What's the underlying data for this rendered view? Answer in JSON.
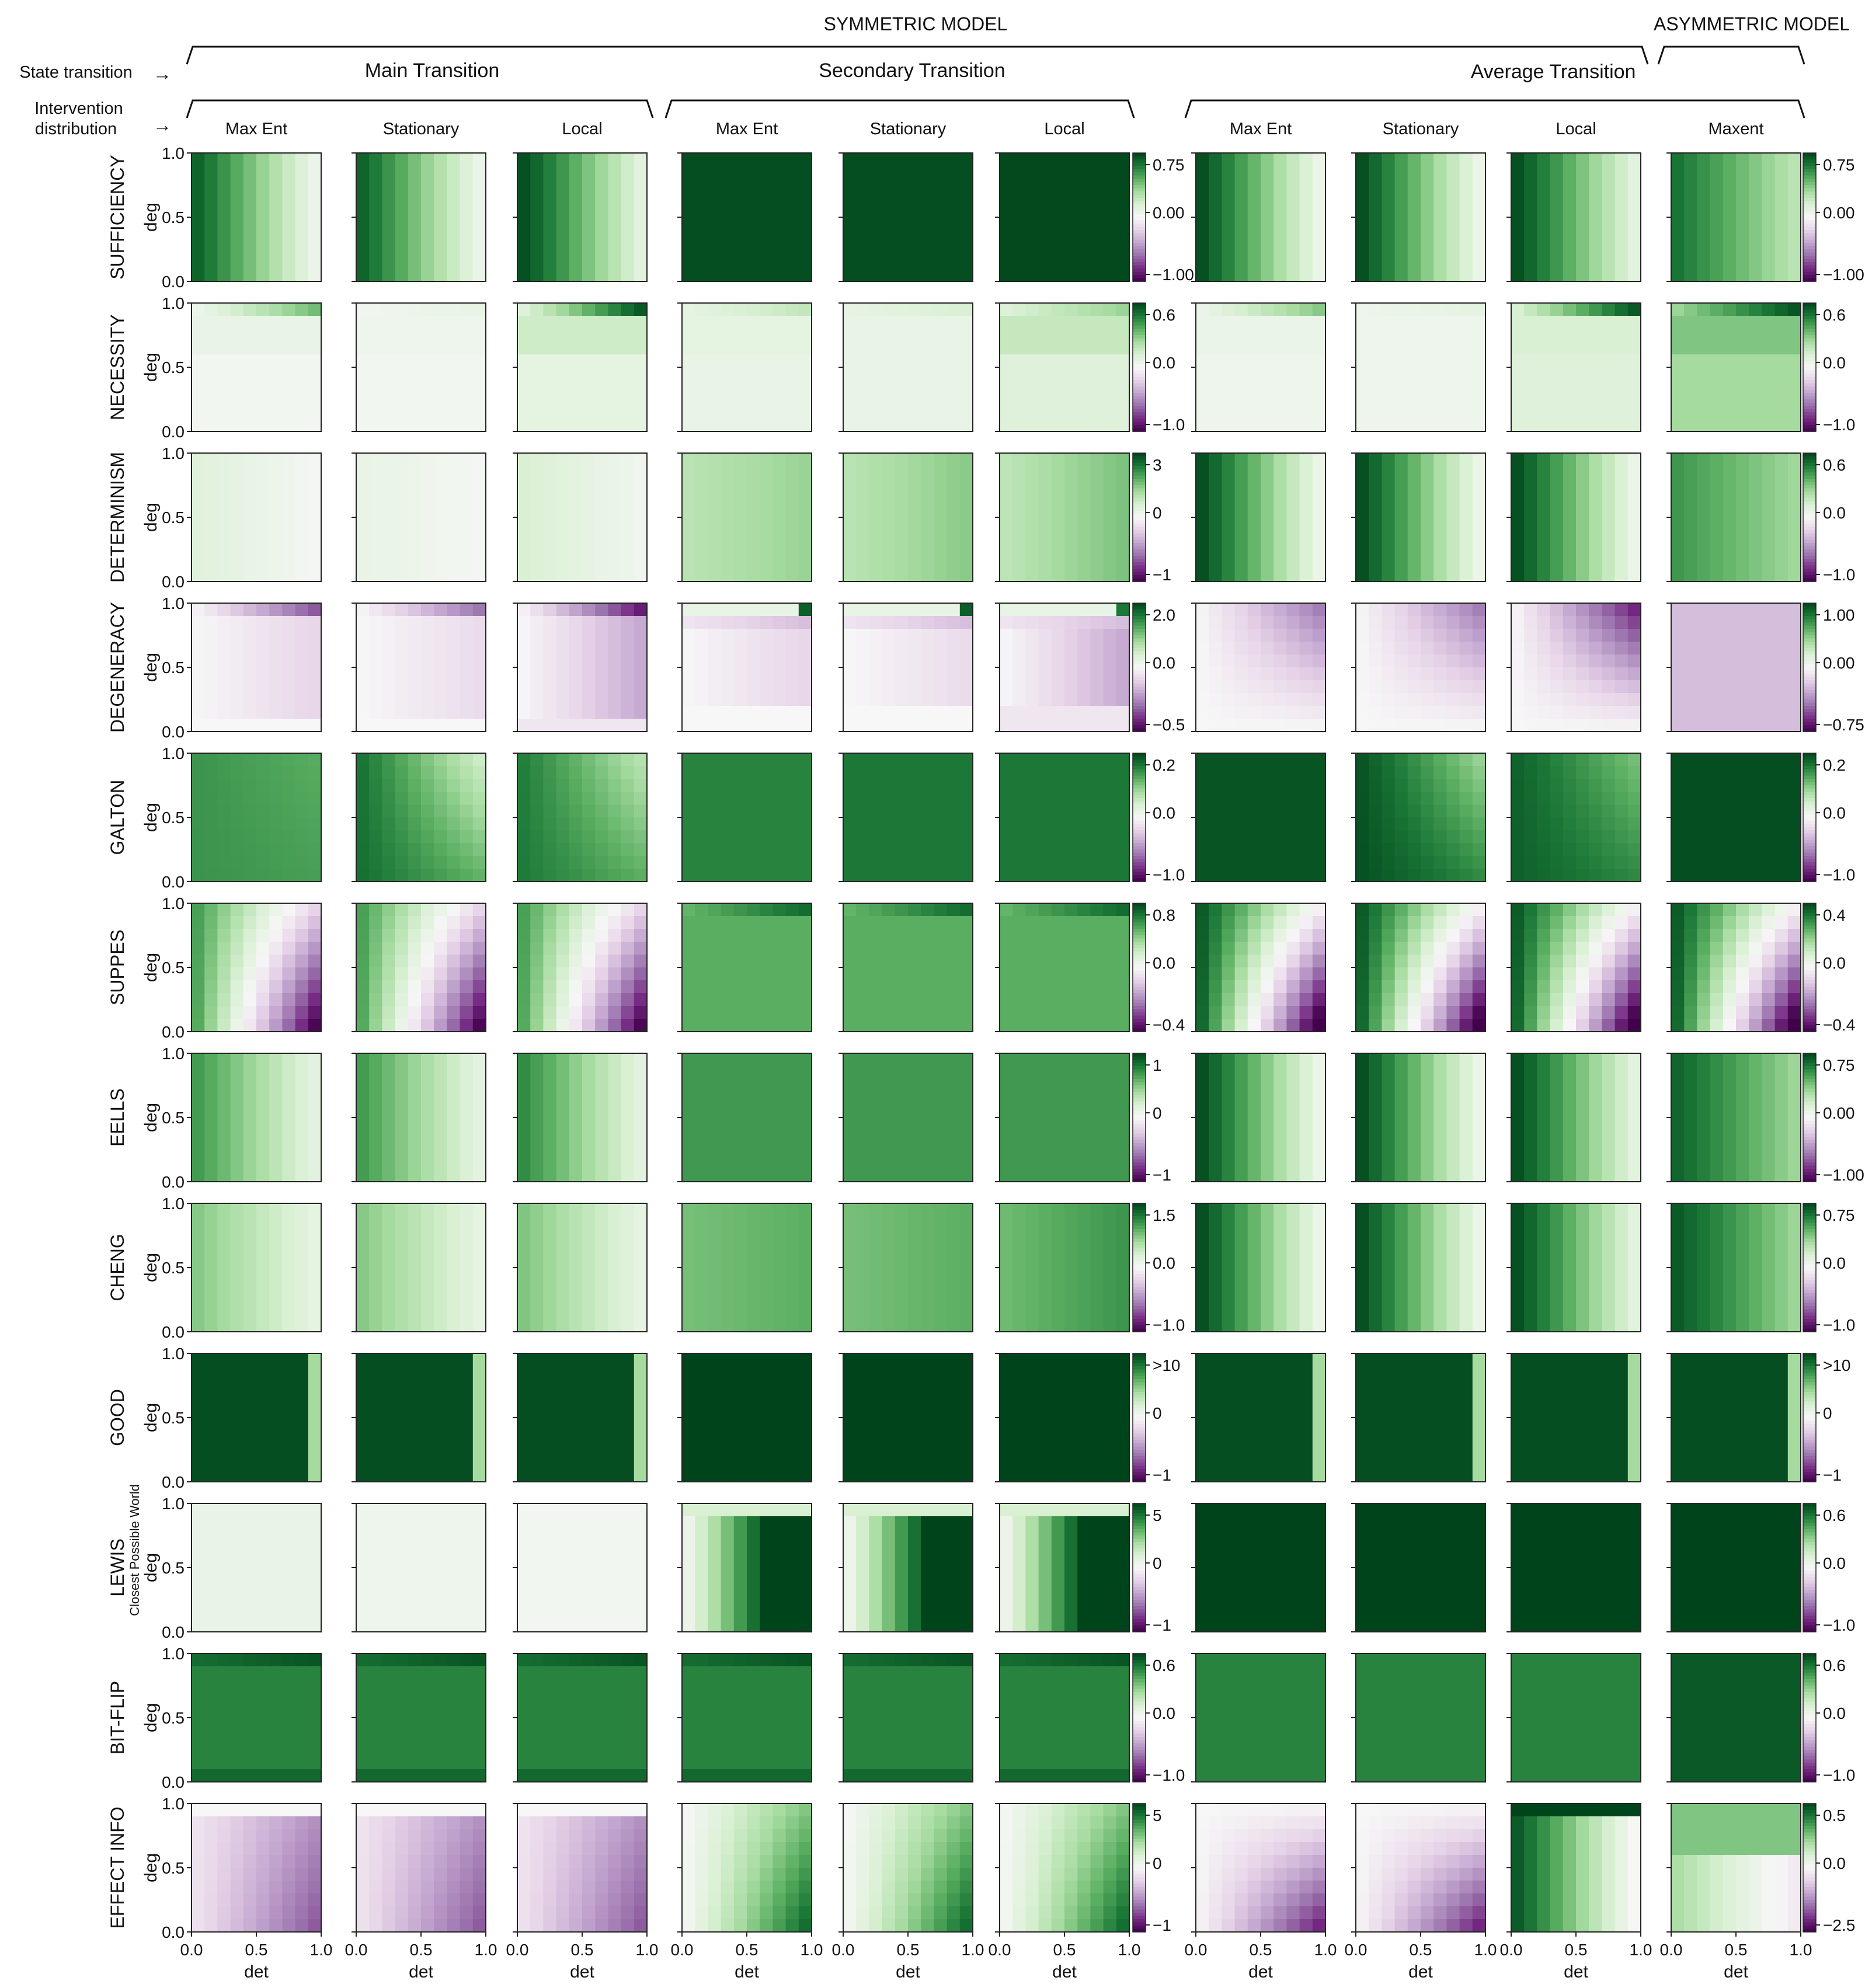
{
  "header": {
    "symmetric_model": "SYMMETRIC MODEL",
    "asymmetric_model": "ASYMMETRIC MODEL",
    "state_transition_label": "State transition",
    "intervention_label_line1": "Intervention",
    "intervention_label_line2": "distribution",
    "arrow": "→",
    "groups": [
      "Main Transition",
      "Secondary Transition",
      "Average Transition"
    ]
  },
  "columns": [
    "Max Ent",
    "Stationary",
    "Local",
    "Max Ent",
    "Stationary",
    "Local",
    "Max Ent",
    "Stationary",
    "Local",
    "Maxent"
  ],
  "rows": [
    {
      "label": "SUFFICIENCY",
      "sub": "",
      "cb_left": [
        "0.75",
        "0.00",
        "−1.00"
      ],
      "cb_right": [
        "0.75",
        "0.00",
        "−1.00"
      ]
    },
    {
      "label": "NECESSITY",
      "sub": "",
      "cb_left": [
        "0.6",
        "0.0",
        "−1.0"
      ],
      "cb_right": [
        "0.6",
        "0.0",
        "−1.0"
      ]
    },
    {
      "label": "DETERMINISM",
      "sub": "",
      "cb_left": [
        "3",
        "0",
        "−1"
      ],
      "cb_right": [
        "0.6",
        "0.0",
        "−1.0"
      ]
    },
    {
      "label": "DEGENERACY",
      "sub": "",
      "cb_left": [
        "2.0",
        "0.0",
        "−0.5"
      ],
      "cb_right": [
        "1.00",
        "0.00",
        "−0.75"
      ]
    },
    {
      "label": "GALTON",
      "sub": "",
      "cb_left": [
        "0.2",
        "0.0",
        "−1.0"
      ],
      "cb_right": [
        "0.2",
        "0.0",
        "−1.0"
      ]
    },
    {
      "label": "SUPPES",
      "sub": "",
      "cb_left": [
        "0.8",
        "0.0",
        "−0.4"
      ],
      "cb_right": [
        "0.4",
        "0.0",
        "−0.4"
      ]
    },
    {
      "label": "EELLS",
      "sub": "",
      "cb_left": [
        "1",
        "0",
        "−1"
      ],
      "cb_right": [
        "0.75",
        "0.00",
        "−1.00"
      ]
    },
    {
      "label": "CHENG",
      "sub": "",
      "cb_left": [
        "1.5",
        "0.0",
        "−1.0"
      ],
      "cb_right": [
        "0.75",
        "0.0",
        "−1.0"
      ]
    },
    {
      "label": "GOOD",
      "sub": "",
      "cb_left": [
        ">10",
        "0",
        "−1"
      ],
      "cb_right": [
        ">10",
        "0",
        "−1"
      ]
    },
    {
      "label": "LEWIS",
      "sub": "Closest Possible World",
      "cb_left": [
        "5",
        "0",
        "−1"
      ],
      "cb_right": [
        "0.6",
        "0.0",
        "−1.0"
      ]
    },
    {
      "label": "BIT-FLIP",
      "sub": "",
      "cb_left": [
        "0.6",
        "0.0",
        "−1.0"
      ],
      "cb_right": [
        "0.6",
        "0.0",
        "−1.0"
      ]
    },
    {
      "label": "EFFECT INFO",
      "sub": "",
      "cb_left": [
        "5",
        "0",
        "−1"
      ],
      "cb_right": [
        "0.5",
        "0.0",
        "−2.5"
      ]
    }
  ],
  "axes": {
    "ylabel": "deg",
    "xlabel": "det",
    "yticks": [
      "1.0",
      "0.5",
      "0.0"
    ],
    "xticks": [
      "0.0",
      "0.5",
      "1.0"
    ]
  },
  "colors": {
    "dark_green": "#00441b",
    "white": "#f7f7f7",
    "dark_purple": "#40004b"
  },
  "chart_data": {
    "type": "heatmap",
    "x": "det",
    "y": "deg",
    "xlim": [
      0,
      1
    ],
    "ylim": [
      0,
      1
    ],
    "colormap": "PRGn"
  }
}
